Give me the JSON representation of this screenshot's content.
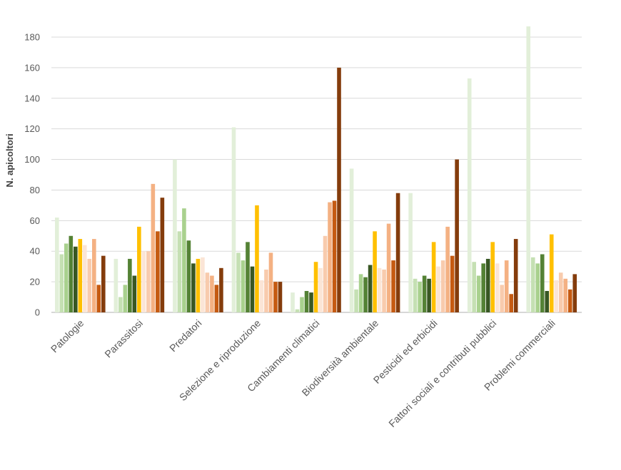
{
  "chart_data": {
    "type": "bar",
    "title": "",
    "xlabel": "",
    "ylabel": "N. apicoltori",
    "ylim": [
      0,
      180
    ],
    "yticks": [
      0,
      20,
      40,
      60,
      80,
      100,
      120,
      140,
      160,
      180
    ],
    "grid": true,
    "legend": "none",
    "categories": [
      "Patologie",
      "Parassitosi",
      "Predatori",
      "Selezione e riproduzione",
      "Cambiamenti climatici",
      "Biodiversità ambientale",
      "Pesticidi ed erbicidi",
      "Fattori sociali e contributi pubblici",
      "Problemi commerciali"
    ],
    "series": [
      {
        "name": "s1",
        "color": "#e2efd9",
        "values": [
          62,
          35,
          100,
          121,
          13,
          94,
          78,
          153,
          187
        ]
      },
      {
        "name": "s2",
        "color": "#c5e0b3",
        "values": [
          38,
          10,
          53,
          39,
          2,
          15,
          22,
          33,
          36
        ]
      },
      {
        "name": "s3",
        "color": "#a9d18e",
        "values": [
          45,
          18,
          68,
          34,
          10,
          25,
          20,
          24,
          32
        ]
      },
      {
        "name": "s4",
        "color": "#548235",
        "values": [
          50,
          35,
          47,
          46,
          14,
          23,
          24,
          32,
          38
        ]
      },
      {
        "name": "s5",
        "color": "#385723",
        "values": [
          43,
          24,
          32,
          30,
          13,
          31,
          22,
          35,
          14
        ]
      },
      {
        "name": "s6",
        "color": "#ffc000",
        "values": [
          48,
          56,
          35,
          70,
          33,
          53,
          46,
          46,
          51
        ]
      },
      {
        "name": "s7",
        "color": "#fbe5d6",
        "values": [
          44,
          40,
          36,
          21,
          29,
          29,
          30,
          32,
          21
        ]
      },
      {
        "name": "s8",
        "color": "#f8cbad",
        "values": [
          35,
          40,
          26,
          28,
          50,
          28,
          34,
          18,
          26
        ]
      },
      {
        "name": "s9",
        "color": "#f4b183",
        "values": [
          48,
          84,
          24,
          39,
          72,
          58,
          56,
          34,
          22
        ]
      },
      {
        "name": "s10",
        "color": "#c55a11",
        "values": [
          18,
          53,
          18,
          20,
          73,
          34,
          37,
          12,
          15
        ]
      },
      {
        "name": "s11",
        "color": "#843c0c",
        "values": [
          37,
          75,
          29,
          20,
          160,
          78,
          100,
          48,
          25
        ]
      }
    ]
  }
}
